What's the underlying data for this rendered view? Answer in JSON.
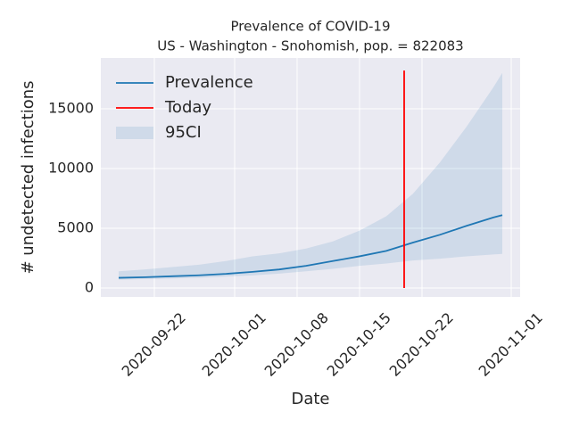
{
  "chart_data": {
    "type": "line",
    "title": "Prevalence of COVID-19",
    "subtitle": "US - Washington - Snohomish, pop. = 822083",
    "xlabel": "Date",
    "ylabel": "# undetected infections",
    "x": [
      "2020-09-18",
      "2020-09-21",
      "2020-09-24",
      "2020-09-27",
      "2020-09-30",
      "2020-10-03",
      "2020-10-06",
      "2020-10-09",
      "2020-10-12",
      "2020-10-15",
      "2020-10-18",
      "2020-10-21",
      "2020-10-24",
      "2020-10-27",
      "2020-10-30",
      "2020-10-31"
    ],
    "series": [
      {
        "name": "Prevalence",
        "color": "#1f77b4",
        "values": [
          850,
          900,
          980,
          1060,
          1180,
          1350,
          1550,
          1850,
          2250,
          2650,
          3100,
          3800,
          4450,
          5200,
          5900,
          6100
        ]
      }
    ],
    "band": {
      "name": "95CI",
      "color": "#1f77b4",
      "lower": [
        700,
        750,
        800,
        850,
        950,
        1050,
        1200,
        1400,
        1600,
        1850,
        2050,
        2300,
        2450,
        2650,
        2800,
        2850
      ],
      "upper": [
        1400,
        1550,
        1750,
        1950,
        2250,
        2650,
        2900,
        3300,
        3900,
        4800,
        6000,
        7900,
        10500,
        13500,
        16800,
        18000
      ]
    },
    "today": {
      "name": "Today",
      "color": "#ff0000",
      "x": "2020-10-20",
      "y": [
        0,
        18200
      ]
    },
    "xlim": [
      "2020-09-16",
      "2020-11-02"
    ],
    "ylim": [
      -750,
      19250
    ],
    "xticks": [
      "2020-09-22",
      "2020-10-01",
      "2020-10-08",
      "2020-10-15",
      "2020-10-22",
      "2020-11-01"
    ],
    "yticks": [
      0,
      5000,
      10000,
      15000
    ],
    "grid": true,
    "legend": "upper left"
  }
}
